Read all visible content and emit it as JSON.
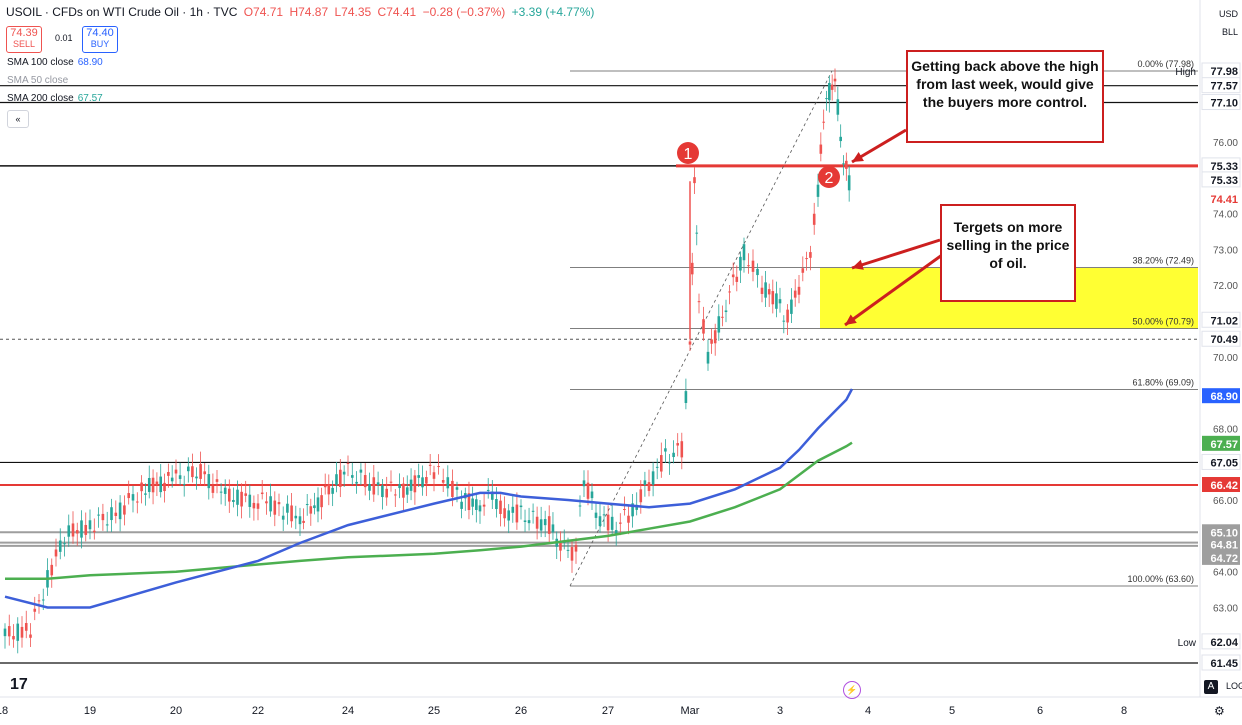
{
  "header": {
    "symbol": "USOIL · CFDs on WTI Crude Oil · 1h · TVC",
    "open": "O74.71",
    "high": "H74.87",
    "low": "L74.35",
    "close": "C74.41",
    "change": "−0.28 (−0.37%)",
    "extra": "+3.39 (+4.77%)",
    "sell_price": "74.39",
    "sell_label": "SELL",
    "buy_price": "74.40",
    "buy_label": "BUY",
    "spread": "0.01",
    "collapse": "«"
  },
  "indicators": [
    {
      "label": "SMA 100 close",
      "value": "68.90",
      "color": "#2962ff",
      "dim": false
    },
    {
      "label": "SMA 50 close",
      "value": "",
      "color": "#9598a1",
      "dim": true
    },
    {
      "label": "SMA 200 close",
      "value": "67.57",
      "color": "#26a69a",
      "dim": false
    }
  ],
  "currency": {
    "cur": "USD",
    "unit": "BLL"
  },
  "annotations": {
    "box1": "Getting back above the high from last week, would give the buyers more control.",
    "box2": "Tergets on more selling in the price of oil.",
    "marker1": "1",
    "marker2": "2"
  },
  "ui": {
    "logo": "17",
    "auto": "A",
    "log_label": "LOG",
    "gear": "⚙",
    "spark": "⚡"
  },
  "colors": {
    "up": "#26a69a",
    "down": "#ef5350",
    "sma100": "#3d5fd9",
    "sma200": "#4caf50",
    "red_line": "#e53935",
    "zone": "#ffff33",
    "annotation": "#cc1f1f"
  },
  "chart_data": {
    "type": "line",
    "title": "USOIL · CFDs on WTI Crude Oil · 1h · TVC",
    "x_ticks": [
      "18",
      "19",
      "20",
      "22",
      "24",
      "25",
      "26",
      "27",
      "Mar",
      "3",
      "4",
      "5",
      "6",
      "8"
    ],
    "y_ticks": [
      63.0,
      64.0,
      66.0,
      68.0,
      70.0,
      71.0,
      72.0,
      73.0,
      74.0,
      75.0,
      76.0
    ],
    "ylim": [
      61.3,
      78.6
    ],
    "price_labels": [
      {
        "value": 77.98,
        "label": "77.98",
        "style": "white"
      },
      {
        "value": 77.57,
        "label": "77.57",
        "style": "white"
      },
      {
        "value": 77.1,
        "label": "77.10",
        "style": "white"
      },
      {
        "value": 75.33,
        "label": "75.33",
        "style": "white"
      },
      {
        "value": 75.33,
        "label": "75.33",
        "style": "white2"
      },
      {
        "value": 74.41,
        "label": "74.41",
        "style": "red"
      },
      {
        "value": 71.02,
        "label": "71.02",
        "style": "white"
      },
      {
        "value": 70.49,
        "label": "70.49",
        "style": "white"
      },
      {
        "value": 68.9,
        "label": "68.90",
        "style": "blue"
      },
      {
        "value": 67.57,
        "label": "67.57",
        "style": "green"
      },
      {
        "value": 67.05,
        "label": "67.05",
        "style": "white"
      },
      {
        "value": 66.42,
        "label": "66.42",
        "style": "redline"
      },
      {
        "value": 65.1,
        "label": "65.10",
        "style": "grey"
      },
      {
        "value": 64.81,
        "label": "64.81",
        "style": "grey"
      },
      {
        "value": 64.72,
        "label": "64.72",
        "style": "grey"
      },
      {
        "value": 62.04,
        "label": "62.04",
        "style": "white"
      },
      {
        "value": 61.45,
        "label": "61.45",
        "style": "white"
      }
    ],
    "high_label": "High",
    "low_label": "Low",
    "fib_levels": [
      {
        "value": 77.98,
        "label": "0.00% (77.98)"
      },
      {
        "value": 72.49,
        "label": "38.20% (72.49)"
      },
      {
        "value": 70.79,
        "label": "50.00% (70.79)"
      },
      {
        "value": 69.09,
        "label": "61.80% (69.09)"
      },
      {
        "value": 63.6,
        "label": "100.00% (63.60)"
      }
    ],
    "horizontal_lines": [
      77.57,
      77.1,
      75.33,
      67.05,
      61.45
    ],
    "red_line": 66.42,
    "grey_lines": [
      65.1,
      64.81,
      64.72
    ],
    "dashed_line": 70.49,
    "price_series": [
      [
        18.0,
        62.2
      ],
      [
        18.3,
        62.4
      ],
      [
        18.5,
        63.8
      ],
      [
        18.7,
        65.0
      ],
      [
        19.0,
        65.3
      ],
      [
        19.3,
        65.6
      ],
      [
        19.6,
        66.3
      ],
      [
        20.0,
        66.6
      ],
      [
        20.3,
        66.8
      ],
      [
        20.6,
        66.1
      ],
      [
        21.0,
        66.0
      ],
      [
        21.3,
        65.9
      ],
      [
        21.6,
        65.7
      ],
      [
        22.0,
        65.5
      ],
      [
        22.3,
        65.8
      ],
      [
        22.6,
        66.3
      ],
      [
        23.0,
        66.8
      ],
      [
        23.3,
        66.4
      ],
      [
        23.6,
        66.2
      ],
      [
        24.0,
        66.8
      ],
      [
        24.3,
        66.5
      ],
      [
        24.6,
        66.0
      ],
      [
        25.0,
        65.9
      ],
      [
        25.3,
        66.1
      ],
      [
        25.6,
        65.7
      ],
      [
        26.0,
        65.6
      ],
      [
        26.3,
        65.3
      ],
      [
        26.5,
        64.4
      ],
      [
        26.6,
        64.7
      ],
      [
        26.7,
        66.5
      ],
      [
        26.9,
        65.5
      ],
      [
        27.1,
        65.3
      ],
      [
        27.3,
        65.7
      ],
      [
        27.5,
        66.5
      ],
      [
        27.7,
        67.2
      ],
      [
        27.9,
        67.4
      ],
      [
        28.0,
        70.2
      ],
      [
        28.05,
        74.9
      ],
      [
        28.1,
        71.6
      ],
      [
        28.2,
        70.0
      ],
      [
        28.4,
        71.5
      ],
      [
        28.6,
        72.9
      ],
      [
        28.8,
        72.0
      ],
      [
        29.0,
        71.4
      ],
      [
        29.2,
        71.1
      ],
      [
        29.4,
        71.6
      ],
      [
        29.6,
        72.3
      ],
      [
        29.8,
        72.9
      ],
      [
        30.0,
        74.6
      ],
      [
        30.1,
        76.8
      ],
      [
        30.2,
        77.4
      ],
      [
        30.3,
        77.9
      ],
      [
        30.4,
        76.0
      ],
      [
        30.5,
        75.3
      ],
      [
        30.6,
        74.4
      ]
    ],
    "sma100_series": [
      [
        18.0,
        63.3
      ],
      [
        18.5,
        63.0
      ],
      [
        19.0,
        63.0
      ],
      [
        20.0,
        63.7
      ],
      [
        21.0,
        64.3
      ],
      [
        22.0,
        64.8
      ],
      [
        23.0,
        65.3
      ],
      [
        24.0,
        65.9
      ],
      [
        25.0,
        66.2
      ],
      [
        25.5,
        66.2
      ],
      [
        26.0,
        66.1
      ],
      [
        26.5,
        66.0
      ],
      [
        27.0,
        65.9
      ],
      [
        27.5,
        65.8
      ],
      [
        28.0,
        65.9
      ],
      [
        28.5,
        66.3
      ],
      [
        29.0,
        66.9
      ],
      [
        29.5,
        67.4
      ],
      [
        30.0,
        68.0
      ],
      [
        30.5,
        68.8
      ],
      [
        30.7,
        69.1
      ]
    ],
    "sma200_series": [
      [
        18.0,
        63.8
      ],
      [
        18.5,
        63.8
      ],
      [
        19.0,
        63.9
      ],
      [
        20.0,
        64.0
      ],
      [
        21.0,
        64.2
      ],
      [
        22.0,
        64.3
      ],
      [
        23.0,
        64.4
      ],
      [
        24.0,
        64.5
      ],
      [
        25.0,
        64.6
      ],
      [
        26.0,
        64.7
      ],
      [
        27.0,
        65.0
      ],
      [
        27.5,
        65.2
      ],
      [
        28.0,
        65.4
      ],
      [
        28.5,
        65.8
      ],
      [
        29.0,
        66.3
      ],
      [
        29.5,
        66.7
      ],
      [
        30.0,
        67.1
      ],
      [
        30.5,
        67.5
      ],
      [
        30.7,
        67.6
      ]
    ]
  }
}
